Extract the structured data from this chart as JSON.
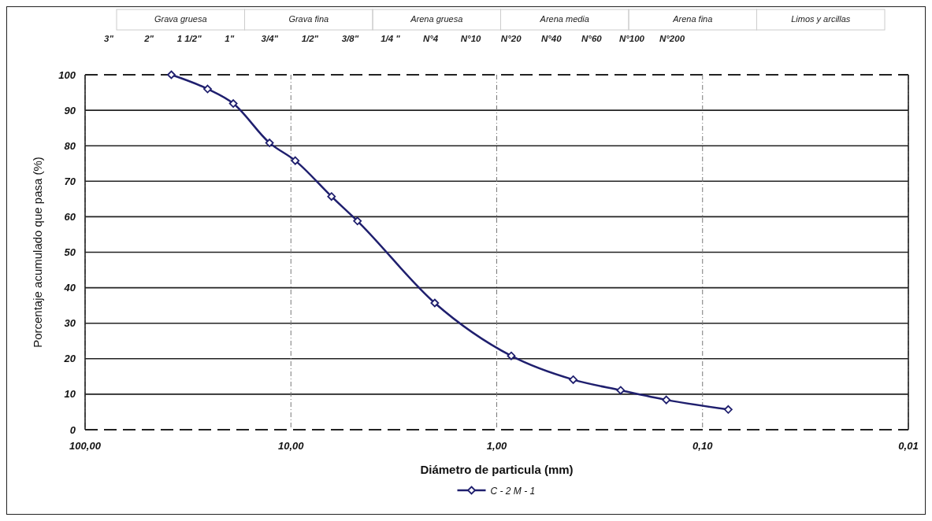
{
  "chart_data": {
    "type": "line",
    "xlabel": "Diámetro de particula (mm)",
    "ylabel": "Porcentaje acumulado que pasa (%)",
    "log": "x",
    "xlim": [
      100,
      0.01
    ],
    "ylim": [
      0,
      100
    ],
    "xticks": [
      {
        "value": 100,
        "label": "100,00"
      },
      {
        "value": 10,
        "label": "10,00"
      },
      {
        "value": 1,
        "label": "1,00"
      },
      {
        "value": 0.1,
        "label": "0,10"
      },
      {
        "value": 0.01,
        "label": "0,01"
      }
    ],
    "yticks": [
      0,
      10,
      20,
      30,
      40,
      50,
      60,
      70,
      80,
      90,
      100
    ],
    "grid": true,
    "legend": "bottom",
    "marker": "diamond",
    "line_style": "solid",
    "series": [
      {
        "name": "C - 2 M - 1",
        "color": "#1f1f6e",
        "x": [
          38.1,
          25.4,
          19.05,
          12.7,
          9.525,
          6.35,
          4.75,
          2.0,
          0.85,
          0.425,
          0.25,
          0.15,
          0.075
        ],
        "values": [
          100,
          96.0,
          91.9,
          80.8,
          75.8,
          65.7,
          58.8,
          35.7,
          20.8,
          14.1,
          11.1,
          8.4,
          5.7
        ]
      }
    ],
    "annotations": [
      {
        "text": "Grava gruesa"
      },
      {
        "text": "Grava fina"
      },
      {
        "text": "Arena gruesa"
      },
      {
        "text": "Arena media"
      },
      {
        "text": "Arena fina"
      },
      {
        "text": "Limos y arcillas"
      },
      "3\"",
      "2\"",
      "1 1/2\"",
      "1\"",
      "3/4\"",
      "1/2\"",
      "3/8\"",
      "1/4 \"",
      "N°4",
      "N°10",
      "N°20",
      "N°40",
      "N°60",
      "N°100",
      "N°200"
    ]
  }
}
